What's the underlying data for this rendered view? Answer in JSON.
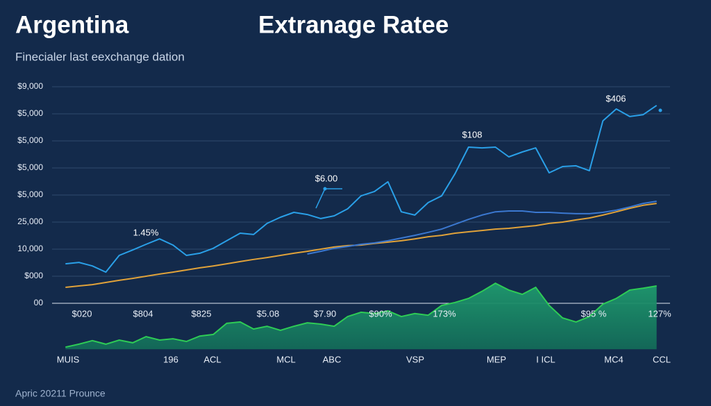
{
  "chart_data": {
    "type": "line",
    "title_left": "Argentina",
    "title": "Extranage Ratee",
    "subtitle": "Finecialer last eexchange dation",
    "footer": "Apric 20211 Prounce",
    "grid": true,
    "xlim": [
      -1,
      45
    ],
    "ylim": [
      -1.7,
      8
    ],
    "yticks": [
      {
        "value": 8,
        "label": "$9,000"
      },
      {
        "value": 7,
        "label": "$5,000"
      },
      {
        "value": 6,
        "label": "$5,000"
      },
      {
        "value": 5,
        "label": "$5,000"
      },
      {
        "value": 4,
        "label": "$5,000"
      },
      {
        "value": 3,
        "label": "25,000"
      },
      {
        "value": 2,
        "label": "10,000"
      },
      {
        "value": 1,
        "label": "$000"
      },
      {
        "value": 0,
        "label": "00"
      }
    ],
    "x": [
      0,
      1,
      2,
      3,
      4,
      5,
      6,
      7,
      8,
      9,
      10,
      11,
      12,
      13,
      14,
      15,
      16,
      17,
      18,
      19,
      20,
      21,
      22,
      23,
      24,
      25,
      26,
      27,
      28,
      29,
      30,
      31,
      32,
      33,
      34,
      35,
      36,
      37,
      38,
      39,
      40,
      41,
      42,
      43,
      44
    ],
    "series": [
      {
        "color": "#e0a23a",
        "values": [
          0.59,
          0.64,
          0.69,
          0.77,
          0.85,
          0.92,
          1.0,
          1.08,
          1.15,
          1.23,
          1.31,
          1.38,
          1.46,
          1.54,
          1.62,
          1.69,
          1.77,
          1.85,
          1.92,
          2.0,
          2.08,
          2.13,
          2.15,
          2.21,
          2.26,
          2.31,
          2.38,
          2.46,
          2.51,
          2.59,
          2.64,
          2.69,
          2.74,
          2.77,
          2.82,
          2.87,
          2.95,
          3.0,
          3.08,
          3.15,
          3.26,
          3.38,
          3.51,
          3.62,
          3.69
        ]
      },
      {
        "color": "#3b78d0",
        "values": [
          null,
          null,
          null,
          null,
          null,
          null,
          null,
          null,
          null,
          null,
          null,
          null,
          null,
          null,
          null,
          null,
          null,
          null,
          1.82,
          1.92,
          2.03,
          2.1,
          2.18,
          2.23,
          2.31,
          2.41,
          2.51,
          2.62,
          2.74,
          2.92,
          3.1,
          3.26,
          3.38,
          3.41,
          3.41,
          3.36,
          3.36,
          3.33,
          3.31,
          3.31,
          3.36,
          3.44,
          3.56,
          3.69,
          3.77
        ]
      },
      {
        "color": "#2aa0e8",
        "values": [
          1.46,
          1.51,
          1.38,
          1.15,
          1.77,
          1.97,
          2.18,
          2.38,
          2.15,
          1.77,
          1.85,
          2.03,
          2.31,
          2.59,
          2.54,
          2.95,
          3.18,
          3.36,
          3.28,
          3.13,
          3.23,
          3.49,
          3.97,
          4.13,
          4.49,
          3.38,
          3.26,
          3.72,
          3.97,
          4.79,
          5.77,
          5.74,
          5.77,
          5.41,
          5.59,
          5.74,
          4.82,
          5.05,
          5.08,
          4.9,
          6.74,
          7.18,
          6.9,
          6.97,
          7.31
        ]
      },
      {
        "color": "#2ecc55",
        "fill": true,
        "values": [
          -1.62,
          -1.51,
          -1.38,
          -1.51,
          -1.36,
          -1.46,
          -1.23,
          -1.36,
          -1.31,
          -1.41,
          -1.21,
          -1.15,
          -0.74,
          -0.69,
          -0.95,
          -0.85,
          -1.0,
          -0.85,
          -0.72,
          -0.77,
          -0.85,
          -0.49,
          -0.33,
          -0.38,
          -0.28,
          -0.49,
          -0.38,
          -0.44,
          -0.08,
          0.03,
          0.18,
          0.44,
          0.74,
          0.49,
          0.33,
          0.59,
          -0.08,
          -0.54,
          -0.69,
          -0.49,
          -0.03,
          0.18,
          0.49,
          0.56,
          0.64
        ]
      }
    ],
    "annotations": [
      "1.45%",
      "$6.00",
      "$108",
      "$406"
    ],
    "x_labels_top": [
      "$020",
      "$804",
      "$825",
      "$5.08",
      "$7.90",
      "$90%",
      "173%",
      "$95 %",
      "127%"
    ],
    "x_labels_bottom": [
      "MUIS",
      "196",
      "ACL",
      "MCL",
      "ABC",
      "VSP",
      "MEP",
      "I ICL",
      "MC4",
      "CCL"
    ]
  }
}
